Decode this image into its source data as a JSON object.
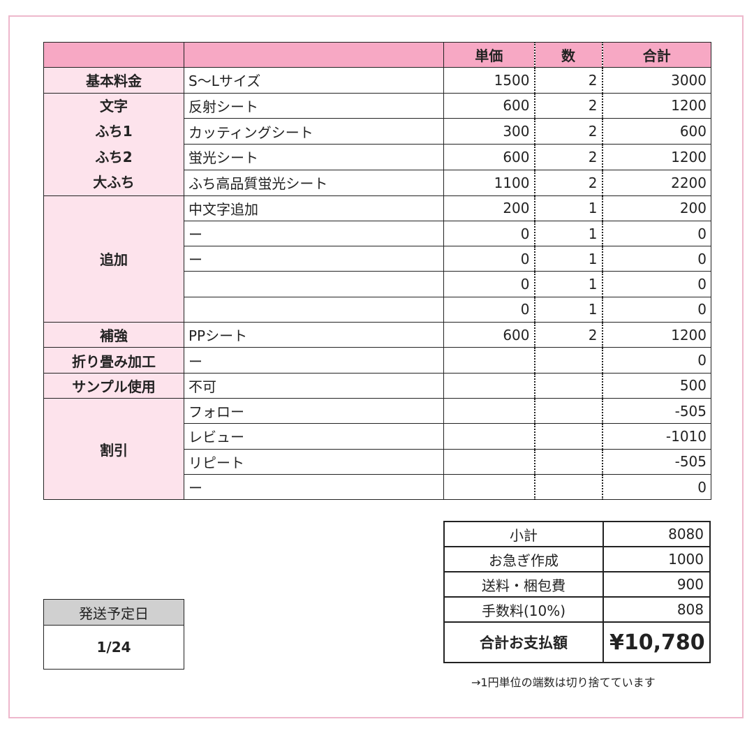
{
  "header": {
    "unit_price": "単価",
    "qty": "数",
    "total": "合計"
  },
  "groups": [
    {
      "category": [
        "基本料金"
      ],
      "rows": [
        {
          "item": "S〜Lサイズ",
          "price": "1500",
          "qty": "2",
          "total": "3000"
        }
      ]
    },
    {
      "category": [
        "文字",
        "ふち1",
        "ふち2",
        "大ふち"
      ],
      "stacked": true,
      "rows": [
        {
          "item": "反射シート",
          "price": "600",
          "qty": "2",
          "total": "1200"
        },
        {
          "item": "カッティングシート",
          "price": "300",
          "qty": "2",
          "total": "600"
        },
        {
          "item": "蛍光シート",
          "price": "600",
          "qty": "2",
          "total": "1200"
        },
        {
          "item": "ふち高品質蛍光シート",
          "price": "1100",
          "qty": "2",
          "total": "2200"
        }
      ]
    },
    {
      "category": [
        "追加"
      ],
      "rows": [
        {
          "item": "中文字追加",
          "price": "200",
          "qty": "1",
          "total": "200"
        },
        {
          "item": "ー",
          "price": "0",
          "qty": "1",
          "total": "0"
        },
        {
          "item": "ー",
          "price": "0",
          "qty": "1",
          "total": "0"
        },
        {
          "item": "",
          "price": "0",
          "qty": "1",
          "total": "0"
        },
        {
          "item": "",
          "price": "0",
          "qty": "1",
          "total": "0"
        }
      ]
    },
    {
      "category": [
        "補強"
      ],
      "rows": [
        {
          "item": "PPシート",
          "price": "600",
          "qty": "2",
          "total": "1200"
        }
      ]
    },
    {
      "category": [
        "折り畳み加工"
      ],
      "rows": [
        {
          "item": "ー",
          "price": "",
          "qty": "",
          "total": "0"
        }
      ]
    },
    {
      "category": [
        "サンプル使用"
      ],
      "rows": [
        {
          "item": "不可",
          "price": "",
          "qty": "",
          "total": "500"
        }
      ]
    },
    {
      "category": [
        "割引"
      ],
      "rows": [
        {
          "item": "フォロー",
          "price": "",
          "qty": "",
          "total": "-505"
        },
        {
          "item": "レビュー",
          "price": "",
          "qty": "",
          "total": "-1010"
        },
        {
          "item": "リピート",
          "price": "",
          "qty": "",
          "total": "-505"
        },
        {
          "item": "ー",
          "price": "",
          "qty": "",
          "total": "0"
        }
      ]
    }
  ],
  "summary": [
    {
      "label": "小計",
      "value": "8080"
    },
    {
      "label": "お急ぎ作成",
      "value": "1000"
    },
    {
      "label": "送料・梱包費",
      "value": "900"
    },
    {
      "label": "手数料(10%)",
      "value": "808"
    }
  ],
  "grand_total": {
    "label": "合計お支払額",
    "value": "¥10,780"
  },
  "note": "→1円単位の端数は切り捨てています",
  "ship": {
    "label": "発送予定日",
    "value": "1/24"
  },
  "colors": {
    "header_pink": "#f7a8c4",
    "category_pink": "#fde3ec",
    "frame": "#eeb8cc"
  }
}
